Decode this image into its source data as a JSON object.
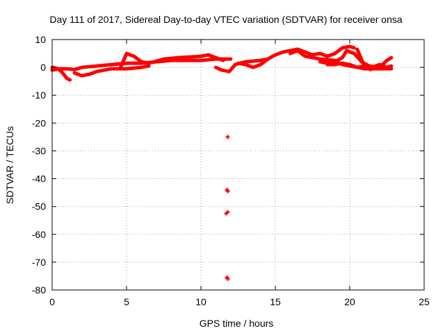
{
  "chart_data": {
    "type": "scatter",
    "title": "Day 111 of 2017, Sidereal Day-to-day VTEC variation (SDTVAR) for receiver onsa",
    "xlabel": "GPS time / hours",
    "ylabel": "SDTVAR / TECUs",
    "xlim": [
      0,
      25
    ],
    "ylim": [
      -80,
      10
    ],
    "xticks": [
      0,
      5,
      10,
      15,
      20,
      25
    ],
    "yticks": [
      10,
      0,
      -10,
      -20,
      -30,
      -40,
      -50,
      -60,
      -70,
      -80
    ],
    "grid": true,
    "color": "#ff0000",
    "series": [
      {
        "name": "SDTVAR",
        "tracks": [
          [
            [
              0,
              0
            ],
            [
              0.4,
              -0.5
            ],
            [
              0.7,
              -2
            ],
            [
              1,
              -4
            ],
            [
              1.2,
              -4.5
            ]
          ],
          [
            [
              0,
              -1
            ],
            [
              0.5,
              -0.5
            ],
            [
              1,
              -0.5
            ],
            [
              1.5,
              -0.8
            ],
            [
              2,
              0
            ],
            [
              3,
              0.5
            ],
            [
              4,
              1
            ],
            [
              5,
              1.5
            ],
            [
              6,
              1.5
            ],
            [
              7,
              2
            ],
            [
              8,
              2.5
            ],
            [
              9,
              2.5
            ],
            [
              10,
              2.5
            ],
            [
              11,
              3
            ],
            [
              12,
              3
            ]
          ],
          [
            [
              4.6,
              0
            ],
            [
              5,
              5
            ],
            [
              5.5,
              4
            ],
            [
              6,
              2
            ],
            [
              6.5,
              1.5
            ],
            [
              7.5,
              3
            ],
            [
              8.5,
              3.5
            ],
            [
              10,
              4
            ],
            [
              10.5,
              4.5
            ],
            [
              11,
              3.5
            ],
            [
              11.5,
              2.5
            ]
          ],
          [
            [
              1.5,
              -2
            ],
            [
              2,
              -3
            ],
            [
              2.5,
              -2.5
            ],
            [
              3,
              -1.5
            ],
            [
              3.5,
              -1
            ],
            [
              4,
              -0.5
            ],
            [
              5,
              -0.5
            ],
            [
              6,
              0
            ],
            [
              6.5,
              0.5
            ]
          ],
          [
            [
              11,
              0
            ],
            [
              11.4,
              -1
            ],
            [
              11.9,
              -1.5
            ],
            [
              12.3,
              1
            ],
            [
              13,
              2
            ],
            [
              14,
              2.5
            ],
            [
              14.5,
              3
            ]
          ],
          [
            [
              12.5,
              1.5
            ],
            [
              13,
              1
            ],
            [
              13.5,
              0
            ],
            [
              14,
              1
            ],
            [
              14.5,
              3
            ],
            [
              15,
              4.5
            ],
            [
              15.5,
              5.5
            ],
            [
              16,
              6
            ],
            [
              16.5,
              6.5
            ],
            [
              17,
              5.5
            ],
            [
              17.5,
              4.5
            ],
            [
              18,
              5
            ],
            [
              18.5,
              4
            ],
            [
              19,
              5
            ],
            [
              19.5,
              7
            ],
            [
              20,
              7.5
            ],
            [
              20.3,
              7
            ]
          ],
          [
            [
              16,
              5
            ],
            [
              16.5,
              6
            ],
            [
              17,
              4
            ],
            [
              18,
              3
            ],
            [
              19,
              2.5
            ],
            [
              19.5,
              1
            ],
            [
              20,
              0.5
            ],
            [
              20.5,
              0
            ],
            [
              21,
              0.5
            ],
            [
              21.5,
              0
            ],
            [
              22,
              1
            ],
            [
              22.5,
              0
            ],
            [
              22.8,
              0.5
            ]
          ],
          [
            [
              18,
              2
            ],
            [
              18.5,
              1.5
            ],
            [
              19,
              2
            ],
            [
              19.5,
              3.5
            ],
            [
              19.8,
              6
            ],
            [
              20.3,
              5
            ],
            [
              20.8,
              2
            ],
            [
              21.3,
              0.5
            ],
            [
              22,
              0
            ],
            [
              22.5,
              2.5
            ],
            [
              22.8,
              3.5
            ]
          ],
          [
            [
              18.5,
              1
            ],
            [
              19,
              1
            ],
            [
              19.5,
              1.5
            ],
            [
              20,
              1
            ],
            [
              20.5,
              0
            ],
            [
              21,
              -0.5
            ],
            [
              22,
              -0.5
            ],
            [
              22.8,
              -0.5
            ]
          ],
          [
            [
              20.5,
              6.5
            ],
            [
              20.7,
              4
            ],
            [
              20.9,
              1.5
            ],
            [
              21.1,
              0
            ],
            [
              21.4,
              -0.8
            ]
          ]
        ],
        "points": [
          [
            11.8,
            -25
          ],
          [
            11.75,
            -44
          ],
          [
            11.8,
            -44.5
          ],
          [
            11.7,
            -52.5
          ],
          [
            11.8,
            -52
          ],
          [
            11.75,
            -75.5
          ],
          [
            11.8,
            -76
          ]
        ]
      }
    ]
  }
}
